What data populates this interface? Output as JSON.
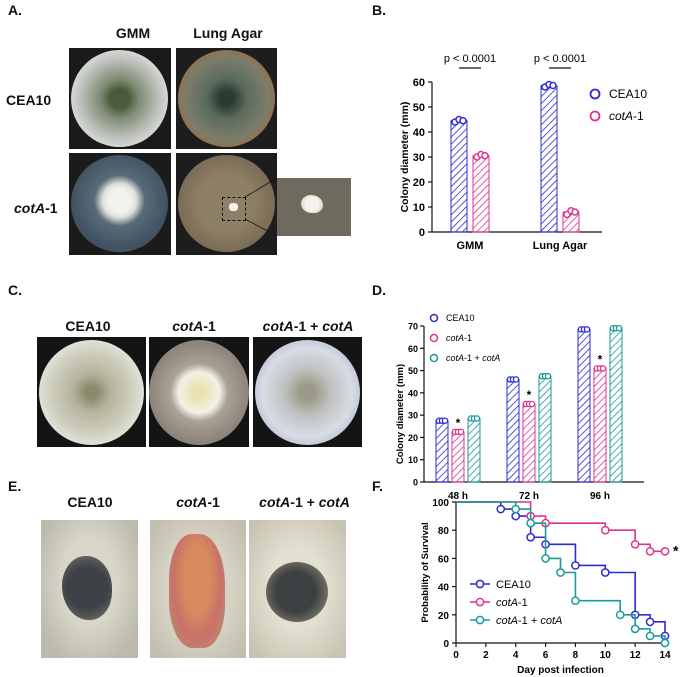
{
  "panels": {
    "A": {
      "letter": "A.",
      "cols": [
        "GMM",
        "Lung Agar"
      ],
      "rows": [
        "CEA10",
        "cotA-1"
      ]
    },
    "B": {
      "letter": "B."
    },
    "C": {
      "letter": "C.",
      "cols": [
        {
          "b": "CEA10",
          "i": ""
        },
        {
          "b": "",
          "i": "cotA",
          "s": "-1"
        },
        {
          "b": "",
          "i": "cotA",
          "s": "-1 + ",
          "i2": "cotA"
        }
      ]
    },
    "D": {
      "letter": "D."
    },
    "E": {
      "letter": "E."
    },
    "F": {
      "letter": "F."
    }
  },
  "labels": {
    "cea10": "CEA10",
    "cota_i": "cotA",
    "cota_s": "-1",
    "plus": " + ",
    "gmm": "GMM",
    "lung": "Lung Agar"
  },
  "chart_data": [
    {
      "id": "B",
      "type": "bar",
      "categories": [
        "GMM",
        "Lung Agar"
      ],
      "series": [
        {
          "name": "CEA10",
          "values": [
            44.5,
            58.5
          ],
          "color": "#2b2bd6",
          "points": [
            [
              44,
              45,
              44.5
            ],
            [
              58,
              59,
              58.6
            ]
          ]
        },
        {
          "name": "cotA-1",
          "values": [
            30.5,
            8
          ],
          "color": "#e0338f",
          "points": [
            [
              30,
              31,
              30.5
            ],
            [
              7,
              8.5,
              8
            ]
          ]
        }
      ],
      "ylabel": "Colony diameter  (mm)",
      "ylim": [
        0,
        60
      ],
      "yticks": [
        0,
        10,
        20,
        30,
        40,
        50,
        60
      ],
      "annotations": [
        "p < 0.0001",
        "p < 0.0001"
      ]
    },
    {
      "id": "D",
      "type": "bar",
      "categories": [
        "48 h",
        "72 h",
        "96 h"
      ],
      "series": [
        {
          "name": "CEA10",
          "values": [
            27.5,
            46,
            68.5
          ],
          "color": "#2b2bd6"
        },
        {
          "name": "cotA-1",
          "values": [
            22.5,
            35,
            51
          ],
          "color": "#e0338f"
        },
        {
          "name": "cotA-1 + cotA",
          "values": [
            28.5,
            47.5,
            69
          ],
          "color": "#1b9a9a"
        }
      ],
      "ylabel": "Colony diameter (mm)",
      "ylim": [
        0,
        70
      ],
      "yticks": [
        0,
        10,
        20,
        30,
        40,
        50,
        60,
        70
      ],
      "annotations": [
        "*",
        "*",
        "*"
      ]
    },
    {
      "id": "F",
      "type": "line",
      "xlabel": "Day post infection",
      "ylabel": "Probability of Survival",
      "xlim": [
        0,
        14
      ],
      "ylim": [
        0,
        100
      ],
      "xticks": [
        0,
        2,
        4,
        6,
        8,
        10,
        12,
        14
      ],
      "yticks": [
        0,
        20,
        40,
        60,
        80,
        100
      ],
      "series": [
        {
          "name": "CEA10",
          "color": "#2b2bd6",
          "steps": [
            [
              0,
              100
            ],
            [
              3,
              100
            ],
            [
              3,
              95
            ],
            [
              4,
              95
            ],
            [
              4,
              90
            ],
            [
              5,
              90
            ],
            [
              5,
              75
            ],
            [
              6,
              75
            ],
            [
              6,
              70
            ],
            [
              8,
              70
            ],
            [
              8,
              55
            ],
            [
              10,
              55
            ],
            [
              10,
              50
            ],
            [
              12,
              50
            ],
            [
              12,
              20
            ],
            [
              13,
              20
            ],
            [
              13,
              15
            ],
            [
              14,
              15
            ],
            [
              14,
              5
            ]
          ],
          "marks": [
            [
              3,
              95
            ],
            [
              4,
              90
            ],
            [
              5,
              75
            ],
            [
              6,
              70
            ],
            [
              8,
              55
            ],
            [
              10,
              50
            ],
            [
              12,
              20
            ],
            [
              13,
              15
            ],
            [
              14,
              5
            ]
          ]
        },
        {
          "name": "cotA-1",
          "color": "#e0338f",
          "steps": [
            [
              0,
              100
            ],
            [
              5,
              100
            ],
            [
              5,
              90
            ],
            [
              6,
              90
            ],
            [
              6,
              85
            ],
            [
              10,
              85
            ],
            [
              10,
              80
            ],
            [
              12,
              80
            ],
            [
              12,
              70
            ],
            [
              13,
              70
            ],
            [
              13,
              65
            ],
            [
              14,
              65
            ]
          ],
          "marks": [
            [
              5,
              90
            ],
            [
              6,
              85
            ],
            [
              10,
              80
            ],
            [
              12,
              70
            ],
            [
              13,
              65
            ],
            [
              14,
              65
            ]
          ]
        },
        {
          "name": "cotA-1 + cotA",
          "color": "#1b9a9a",
          "steps": [
            [
              0,
              100
            ],
            [
              4,
              100
            ],
            [
              4,
              95
            ],
            [
              5,
              95
            ],
            [
              5,
              85
            ],
            [
              6,
              85
            ],
            [
              6,
              60
            ],
            [
              7,
              60
            ],
            [
              7,
              50
            ],
            [
              8,
              50
            ],
            [
              8,
              30
            ],
            [
              11,
              30
            ],
            [
              11,
              20
            ],
            [
              12,
              20
            ],
            [
              12,
              10
            ],
            [
              13,
              10
            ],
            [
              13,
              5
            ],
            [
              14,
              5
            ],
            [
              14,
              0
            ]
          ],
          "marks": [
            [
              4,
              95
            ],
            [
              5,
              85
            ],
            [
              6,
              60
            ],
            [
              7,
              50
            ],
            [
              8,
              30
            ],
            [
              11,
              20
            ],
            [
              12,
              10
            ],
            [
              13,
              5
            ],
            [
              14,
              0
            ]
          ]
        }
      ],
      "annotations": [
        "*"
      ]
    }
  ]
}
